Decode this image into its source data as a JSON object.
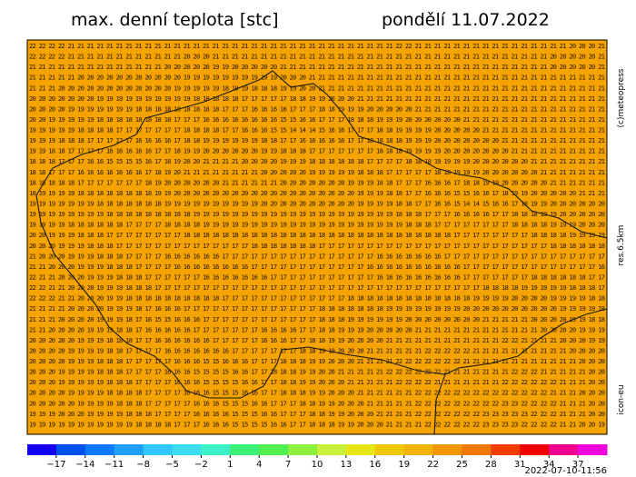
{
  "header": {
    "title": "max. denní teplota [stc]",
    "date": "pondělí 11.07.2022"
  },
  "side": {
    "copyright": "(c)meteopress",
    "resolution": "res.6.5km",
    "model": "icon-eu"
  },
  "footer": {
    "timestamp": "2022-07-10-11:56"
  },
  "map": {
    "rows": [
      "22 22 22 22 21 21 21 21 21 21 21 21 21 21 21 21 21 21 21 21 21 21 21 21 21 21 21 21 21 21 21 21 21 21 21 21 21 21 22 22 21 21 21 21 21 21 21 21 21 21 21 21 21 21 21 21 20 20 20 21",
      "22 22 22 22 21 21 21 21 21 21 21 21 21 21 21 21 20 20 20 21 21 21 21 21 21 21 21 21 21 21 21 21 21 21 21 21 21 21 21 21 21 21 21 21 21 21 21 21 21 21 21 21 21 21 20 20 20 20 20 21",
      "21 21 21 21 21 21 21 21 21 21 21 21 21 21 20 20 20 20 20 19 19 20 20 20 20 20 21 21 21 21 21 21 21 21 21 21 21 21 21 21 21 21 21 21 21 21 21 21 21 21 21 21 21 21 20 20 20 20 20 21",
      "21 21 21 21 21 20 20 20 20 20 20 20 20 20 20 20 19 19 19 19 19 19 19 19 19 19 20 20 20 21 21 21 21 21 21 21 21 21 21 21 21 21 21 21 21 21 21 21 21 21 21 21 21 21 21 21 21 21 21 21",
      "21 21 21 20 20 20 20 20 20 20 20 20 20 20 20 19 19 19 19 19 18 18 19 18 18 18 19 19 20 20 21 21 21 21 21 21 21 21 21 21 21 21 21 21 21 21 21 21 21 21 21 21 21 21 21 21 21 21 21 21",
      "20 20 20 20 20 20 20 19 19 19 19 19 19 19 19 19 19 18 18 18 18 18 17 17 17 17 17 18 18 19 19 20 20 20 21 21 21 21 21 21 21 21 21 21 21 21 21 21 21 21 21 21 21 21 21 21 21 21 21 21",
      "20 20 20 20 19 19 19 19 19 19 19 18 18 18 18 18 18 18 18 18 17 17 17 16 16 16 16 17 17 17 18 18 19 19 19 20 20 20 20 20 21 21 21 21 21 21 21 21 21 21 21 21 21 21 21 21 21 21 21 21",
      "20 20 19 19 19 19 19 18 18 18 18 18 18 18 18 17 17 17 16 16 16 16 16 16 16 16 15 15 16 16 17 17 17 18 18 18 19 19 19 20 20 20 20 20 20 21 21 21 21 21 21 21 21 21 21 21 21 21 21 21",
      "19 19 19 19 19 18 18 18 18 17 17 17 17 17 17 17 18 18 18 18 17 17 16 16 16 15 15 14 14 14 15 16 16 17 17 17 18 18 19 19 19 19 20 20 20 20 20 21 21 21 21 21 21 21 21 21 21 21 21 21",
      "19 19 19 18 18 18 17 17 17 17 17 16 16 16 16 17 18 18 19 19 19 19 19 19 18 18 17 17 16 16 16 16 16 17 17 18 18 18 18 19 19 19 20 20 20 20 20 20 20 21 21 21 21 21 21 21 21 21 21 21",
      "19 19 18 18 17 17 17 17 16 16 16 16 16 17 17 18 19 19 20 20 20 20 20 20 19 19 18 18 18 17 17 17 17 17 17 17 18 18 18 19 19 19 19 20 20 20 20 20 20 20 21 21 21 21 21 21 21 21 21 21",
      "18 18 18 17 17 17 16 16 15 15 15 15 16 17 18 19 20 20 21 21 21 21 20 20 20 20 19 19 19 18 18 18 18 18 18 17 17 17 17 18 18 18 19 19 19 19 20 20 20 20 20 20 21 21 21 21 21 21 21 21",
      "18 18 17 17 17 16 16 16 16 16 16 16 17 18 19 20 21 21 21 21 21 21 21 21 20 20 20 20 20 19 19 19 19 19 18 18 18 17 17 17 17 17 18 18 19 19 19 20 20 20 20 20 20 21 21 21 21 21 21 21",
      "18 18 18 18 18 17 17 17 17 17 17 17 18 19 20 20 20 20 20 20 21 21 21 21 21 21 20 20 20 20 20 20 20 19 19 19 18 18 17 17 17 16 16 16 17 18 18 19 19 20 20 20 20 20 21 21 21 21 21 21",
      "18 19 19 19 19 18 18 18 18 18 18 18 18 19 19 20 20 20 20 20 20 20 20 20 20 20 20 20 20 20 20 20 20 20 19 19 19 18 18 17 17 16 16 16 15 15 16 16 17 18 19 19 20 20 20 20 20 21 21 21",
      "19 19 19 19 19 19 19 18 18 18 18 18 18 18 19 19 19 19 19 19 19 19 19 19 20 20 20 20 20 20 20 20 20 20 19 19 19 19 18 18 17 17 16 16 15 14 14 15 16 16 17 18 19 19 20 20 20 20 20 20",
      "19 19 19 19 19 19 19 19 18 18 18 18 18 18 18 18 18 19 19 19 19 19 19 19 19 19 19 19 19 19 19 19 19 19 19 19 19 19 18 18 18 17 17 17 16 16 16 16 17 17 18 18 18 19 19 20 20 20 20 20",
      "19 19 19 19 18 18 18 18 18 18 17 17 17 17 18 18 18 18 19 19 19 19 19 19 19 19 19 19 19 19 19 19 19 19 19 19 19 19 19 18 18 18 17 17 17 17 17 17 17 17 18 18 18 18 19 19 19 20 20 20",
      "20 20 19 19 19 18 18 18 17 17 17 17 17 17 17 17 18 18 18 18 18 18 18 18 18 18 18 18 18 18 18 18 18 18 18 18 18 18 18 18 18 18 18 18 17 17 17 17 17 17 17 17 18 18 18 18 19 19 19 19",
      "20 20 20 19 19 19 18 18 18 17 17 17 17 17 17 17 17 17 17 17 17 17 17 18 18 18 18 18 18 18 17 17 17 17 17 17 17 17 17 17 17 17 17 17 17 17 17 17 17 17 17 17 17 17 18 18 18 18 18 18",
      "21 20 20 20 19 19 19 18 18 18 17 17 17 17 16 16 16 16 16 16 17 17 17 17 17 17 17 17 17 17 17 17 17 17 17 17 16 16 16 16 16 16 16 17 17 17 17 17 17 17 17 17 17 17 17 17 17 17 17 17",
      "21 21 20 20 20 19 19 19 18 18 18 17 17 17 17 16 16 16 16 16 16 16 16 17 17 17 17 17 17 17 17 17 17 17 17 16 16 16 16 16 16 16 16 16 16 17 17 17 17 17 17 17 17 17 17 17 17 17 17 16",
      "22 21 21 20 20 20 19 19 19 18 18 18 17 17 17 17 17 17 16 16 16 16 16 16 16 17 17 17 17 17 17 17 17 17 17 17 16 16 16 16 16 16 16 16 16 17 17 17 17 17 17 17 18 18 18 18 18 18 17 17",
      "22 22 21 21 20 20 20 19 19 19 18 18 18 17 17 17 17 17 17 17 17 17 17 17 17 17 17 17 17 17 17 17 17 17 17 17 17 17 17 17 17 17 17 17 17 17 17 18 18 18 18 19 19 19 19 19 18 18 18 17",
      "22 22 22 21 21 20 20 20 19 19 18 18 18 18 18 18 18 18 18 18 17 17 17 17 17 17 17 17 17 17 17 17 17 18 18 18 18 18 18 18 18 18 18 18 18 18 19 19 19 19 20 20 20 20 19 19 19 19 18 18",
      "21 21 21 21 20 20 20 20 19 19 19 18 17 16 16 16 17 17 17 17 17 17 17 17 17 17 17 17 17 17 18 18 18 18 18 18 18 19 19 19 19 19 19 19 19 20 20 20 20 20 20 20 20 20 20 19 19 19 19 18",
      "21 21 21 20 20 20 20 19 19 19 18 17 16 15 15 16 16 16 17 17 17 17 17 17 17 17 17 17 17 17 18 18 18 19 19 19 19 19 19 20 20 20 20 20 20 20 20 21 21 21 21 21 20 20 20 20 19 19 18 18",
      "21 21 20 20 20 20 19 19 19 18 18 17 16 16 16 16 16 17 17 17 17 17 17 17 16 16 16 16 17 17 18 18 19 19 19 20 20 20 20 20 21 21 21 21 21 21 21 21 21 21 21 21 21 20 20 20 20 19 19 19",
      "20 20 20 20 20 19 19 19 18 18 18 17 17 16 16 16 16 16 16 17 17 17 17 17 16 16 16 17 17 18 18 19 19 20 20 20 20 21 21 21 21 21 21 21 21 21 21 21 21 22 22 21 21 21 21 20 20 20 19 19",
      "20 20 20 20 19 19 19 19 18 18 17 17 17 17 16 16 16 16 16 16 16 17 17 17 17 17 17 17 18 18 19 19 20 20 20 21 21 21 21 21 21 22 22 22 22 22 21 21 21 21 21 21 21 21 21 21 20 20 20 20",
      "20 20 20 20 19 19 19 18 18 18 17 17 17 17 17 16 16 16 15 15 16 16 16 17 17 17 18 18 18 19 19 20 20 20 21 21 21 21 22 22 22 22 22 22 22 21 21 21 21 21 21 21 21 21 21 21 21 20 20 20",
      "20 20 20 19 19 19 19 18 18 18 17 17 17 17 16 16 16 15 15 15 15 16 16 17 17 18 18 18 19 19 20 20 21 21 21 21 21 22 22 22 22 22 22 21 21 21 21 21 21 21 22 22 22 21 21 21 21 21 20 20",
      "20 20 20 19 19 19 19 19 18 18 18 17 17 17 17 16 16 16 15 15 15 15 16 16 17 17 18 18 19 19 20 20 20 21 21 21 21 21 22 22 22 22 21 21 21 21 21 21 21 22 22 22 22 22 22 21 21 21 20 20",
      "20 20 20 20 19 19 19 19 18 18 18 18 17 17 17 17 16 16 16 15 15 15 16 16 17 17 18 18 18 19 19 20 20 20 21 21 21 21 21 21 22 22 22 22 22 22 22 22 22 22 22 22 22 22 21 21 21 20 20 20",
      "20 20 20 20 20 19 19 19 19 18 18 18 17 17 17 17 17 16 16 16 15 15 15 16 16 17 17 17 18 18 19 19 20 20 20 21 21 21 21 21 22 22 22 22 22 22 22 22 22 23 23 22 22 22 22 21 21 21 20 20",
      "19 19 19 20 20 20 19 19 19 19 18 18 18 17 17 17 17 16 16 16 16 15 15 15 16 16 17 17 17 18 18 19 19 20 20 20 21 21 21 21 22 22 22 22 22 22 22 23 23 23 23 23 22 22 22 21 21 21 20 20",
      "19 19 19 19 19 19 19 19 19 19 19 18 18 18 18 17 17 17 16 16 16 15 15 15 15 16 16 17 17 18 18 18 19 19 20 20 20 21 21 21 21 22 22 22 22 22 22 23 23 23 23 22 22 22 22 21 21 20 20 19"
    ]
  },
  "legend": {
    "colors": [
      "#1400f0",
      "#0050f0",
      "#0a78ff",
      "#1ea0ff",
      "#32c8ff",
      "#3cdcf0",
      "#3cf0c8",
      "#3cf078",
      "#50f050",
      "#8cf03c",
      "#c8f03c",
      "#e6e614",
      "#f0c800",
      "#f0b400",
      "#f09600",
      "#f07800",
      "#f03c00",
      "#f00000",
      "#f0008c",
      "#f000dc"
    ],
    "labels": [
      "−17",
      "−14",
      "−11",
      "−8",
      "−5",
      "−2",
      "1",
      "4",
      "7",
      "10",
      "13",
      "16",
      "19",
      "22",
      "25",
      "28",
      "31",
      "34",
      "37"
    ]
  }
}
